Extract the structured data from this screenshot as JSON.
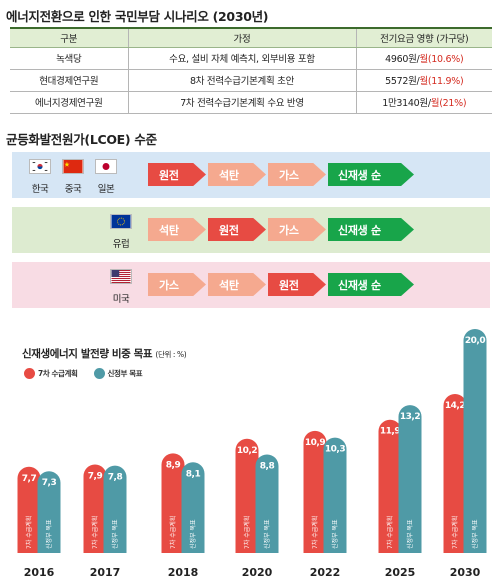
{
  "scenario": {
    "title": "에너지전환으로 인한 국민부담 시나리오 (2030년)",
    "headers": [
      "구분",
      "가정",
      "전기요금 영향 (가구당)"
    ],
    "rows": [
      {
        "name": "녹색당",
        "assumption": "수요, 설비 자체 예측치, 외부비용 포함",
        "impact_main": "4960원/",
        "impact_red": "월(10.6%)"
      },
      {
        "name": "현대경제연구원",
        "assumption": "8차 전력수급기본계획 초안",
        "impact_main": "5572원/",
        "impact_red": "월(11.9%)"
      },
      {
        "name": "에너지경제연구원",
        "assumption": "7차 전력수급기본계획 수요 반영",
        "impact_main": "1만3140원/",
        "impact_red": "월(21%)"
      }
    ]
  },
  "lcoe": {
    "title": "균등화발전원가(LCOE) 수준",
    "rows": [
      {
        "bg": "#d6e6f5",
        "countries": [
          {
            "label": "한국",
            "flag": "korea-flag-icon"
          },
          {
            "label": "중국",
            "flag": "china-flag-icon"
          },
          {
            "label": "일본",
            "flag": "japan-flag-icon"
          }
        ],
        "steps": [
          "원전",
          "석탄",
          "가스"
        ],
        "highlight": 0,
        "final": "신재생 순"
      },
      {
        "bg": "#ddebd0",
        "countries": [
          {
            "label": "유럽",
            "flag": "eu-flag-icon"
          }
        ],
        "steps": [
          "석탄",
          "원전",
          "가스"
        ],
        "highlight": 1,
        "final": "신재생 순"
      },
      {
        "bg": "#f8dce4",
        "countries": [
          {
            "label": "미국",
            "flag": "us-flag-icon"
          }
        ],
        "steps": [
          "가스",
          "석탄",
          "원전"
        ],
        "highlight": 2,
        "final": "신재생 순"
      }
    ]
  },
  "chart_title": "신재생에너지 발전량 비중 목표",
  "chart_unit": "(단위 : %)",
  "colors": {
    "red": "#e74b43",
    "teal": "#4f9aa6"
  },
  "chart_data": {
    "type": "bar",
    "title": "신재생에너지 발전량 비중 목표",
    "unit": "%",
    "categories": [
      "2016",
      "2017",
      "2018",
      "2020",
      "2022",
      "2025",
      "2030"
    ],
    "series": [
      {
        "name": "7차 수급계획",
        "values": [
          7.7,
          7.9,
          8.9,
          10.2,
          10.9,
          11.9,
          14.2
        ],
        "bar_label": "7차 수급계획",
        "value_labels": [
          "7,7",
          "7,9",
          "8,9",
          "10,2",
          "10,9",
          "11,9",
          "14,2"
        ]
      },
      {
        "name": "신정부 목표",
        "values": [
          7.3,
          7.8,
          8.1,
          8.8,
          10.3,
          13.2,
          20.0
        ],
        "bar_label": "신정부 목표",
        "value_labels": [
          "7,3",
          "7,8",
          "8,1",
          "8,8",
          "10,3",
          "13,2",
          "20,0"
        ]
      }
    ],
    "legend": "top-left",
    "grid": false
  }
}
